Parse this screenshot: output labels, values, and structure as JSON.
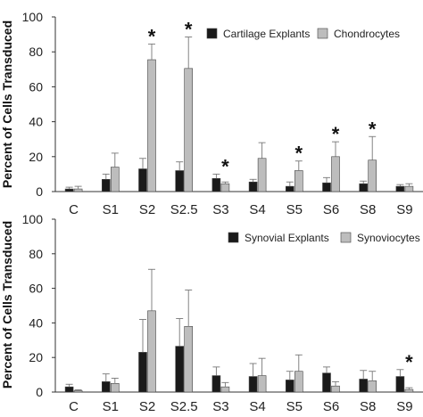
{
  "chart_data": [
    {
      "type": "bar",
      "ylabel": "Percent of Cells Transduced",
      "ylim": [
        0,
        100
      ],
      "yticks": [
        0,
        20,
        40,
        60,
        80,
        100
      ],
      "categories": [
        "C",
        "S1",
        "S2",
        "S2.5",
        "S3",
        "S4",
        "S5",
        "S6",
        "S8",
        "S9"
      ],
      "legend_position": "top-right",
      "grid": false,
      "series": [
        {
          "name": "Cartilage Explants",
          "color": "#1a1a1a",
          "values": [
            1.5,
            7,
            13,
            12,
            7.5,
            5.5,
            3,
            5,
            4.5,
            3
          ],
          "errors": [
            1,
            3,
            6,
            5,
            2.5,
            1.5,
            2.5,
            3,
            1.5,
            1
          ]
        },
        {
          "name": "Chondrocytes",
          "color": "#bdbdbd",
          "values": [
            1.5,
            14,
            75.5,
            70.5,
            4.5,
            19,
            12,
            20,
            18,
            3
          ],
          "errors": [
            1.5,
            8,
            9,
            18,
            1,
            9,
            5.5,
            8.5,
            13.5,
            1.5
          ]
        }
      ],
      "significance": [
        {
          "category": "S2",
          "label": "*"
        },
        {
          "category": "S2.5",
          "label": "*"
        },
        {
          "category": "S3",
          "label": "*"
        },
        {
          "category": "S5",
          "label": "*"
        },
        {
          "category": "S6",
          "label": "*"
        },
        {
          "category": "S8",
          "label": "*"
        }
      ]
    },
    {
      "type": "bar",
      "ylabel": "Percent of Cells Transduced",
      "ylim": [
        0,
        100
      ],
      "yticks": [
        0,
        20,
        40,
        60,
        80,
        100
      ],
      "categories": [
        "C",
        "S1",
        "S2",
        "S2.5",
        "S3",
        "S4",
        "S5",
        "S6",
        "S8",
        "S9"
      ],
      "legend_position": "top-right",
      "grid": false,
      "series": [
        {
          "name": "Synovial Explants",
          "color": "#1a1a1a",
          "values": [
            3,
            6,
            23,
            26.5,
            9.5,
            9,
            7,
            11,
            7.5,
            9
          ],
          "errors": [
            1.5,
            4.5,
            19,
            16,
            5,
            7.5,
            5,
            3.5,
            5,
            4
          ]
        },
        {
          "name": "Synoviocytes",
          "color": "#bdbdbd",
          "values": [
            0.8,
            5,
            47,
            38,
            3,
            9.5,
            12,
            3.5,
            6.5,
            1.5
          ],
          "errors": [
            0.5,
            3,
            24,
            21,
            2.5,
            10,
            9.5,
            2.5,
            5.5,
            1
          ]
        }
      ],
      "significance": [
        {
          "category": "S9",
          "label": "*"
        }
      ]
    }
  ]
}
